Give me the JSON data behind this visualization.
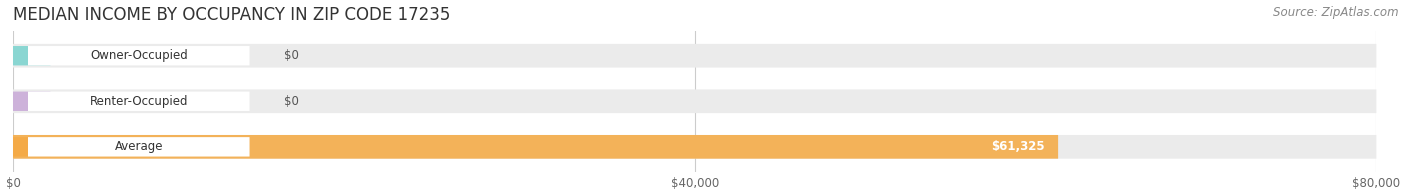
{
  "title": "MEDIAN INCOME BY OCCUPANCY IN ZIP CODE 17235",
  "source": "Source: ZipAtlas.com",
  "categories": [
    "Owner-Occupied",
    "Renter-Occupied",
    "Average"
  ],
  "values": [
    0,
    0,
    61325
  ],
  "bar_colors": [
    "#7dd4cf",
    "#c9aad8",
    "#f5aa45"
  ],
  "bar_labels": [
    "$0",
    "$0",
    "$61,325"
  ],
  "xlim": [
    0,
    80000
  ],
  "xticks": [
    0,
    40000,
    80000
  ],
  "xtick_labels": [
    "$0",
    "$40,000",
    "$80,000"
  ],
  "background_color": "#ffffff",
  "bar_bg_color": "#ebebeb",
  "grid_color": "#cccccc",
  "title_fontsize": 12,
  "source_fontsize": 8.5,
  "label_fontsize": 8.5,
  "figsize": [
    14.06,
    1.96
  ],
  "dpi": 100
}
